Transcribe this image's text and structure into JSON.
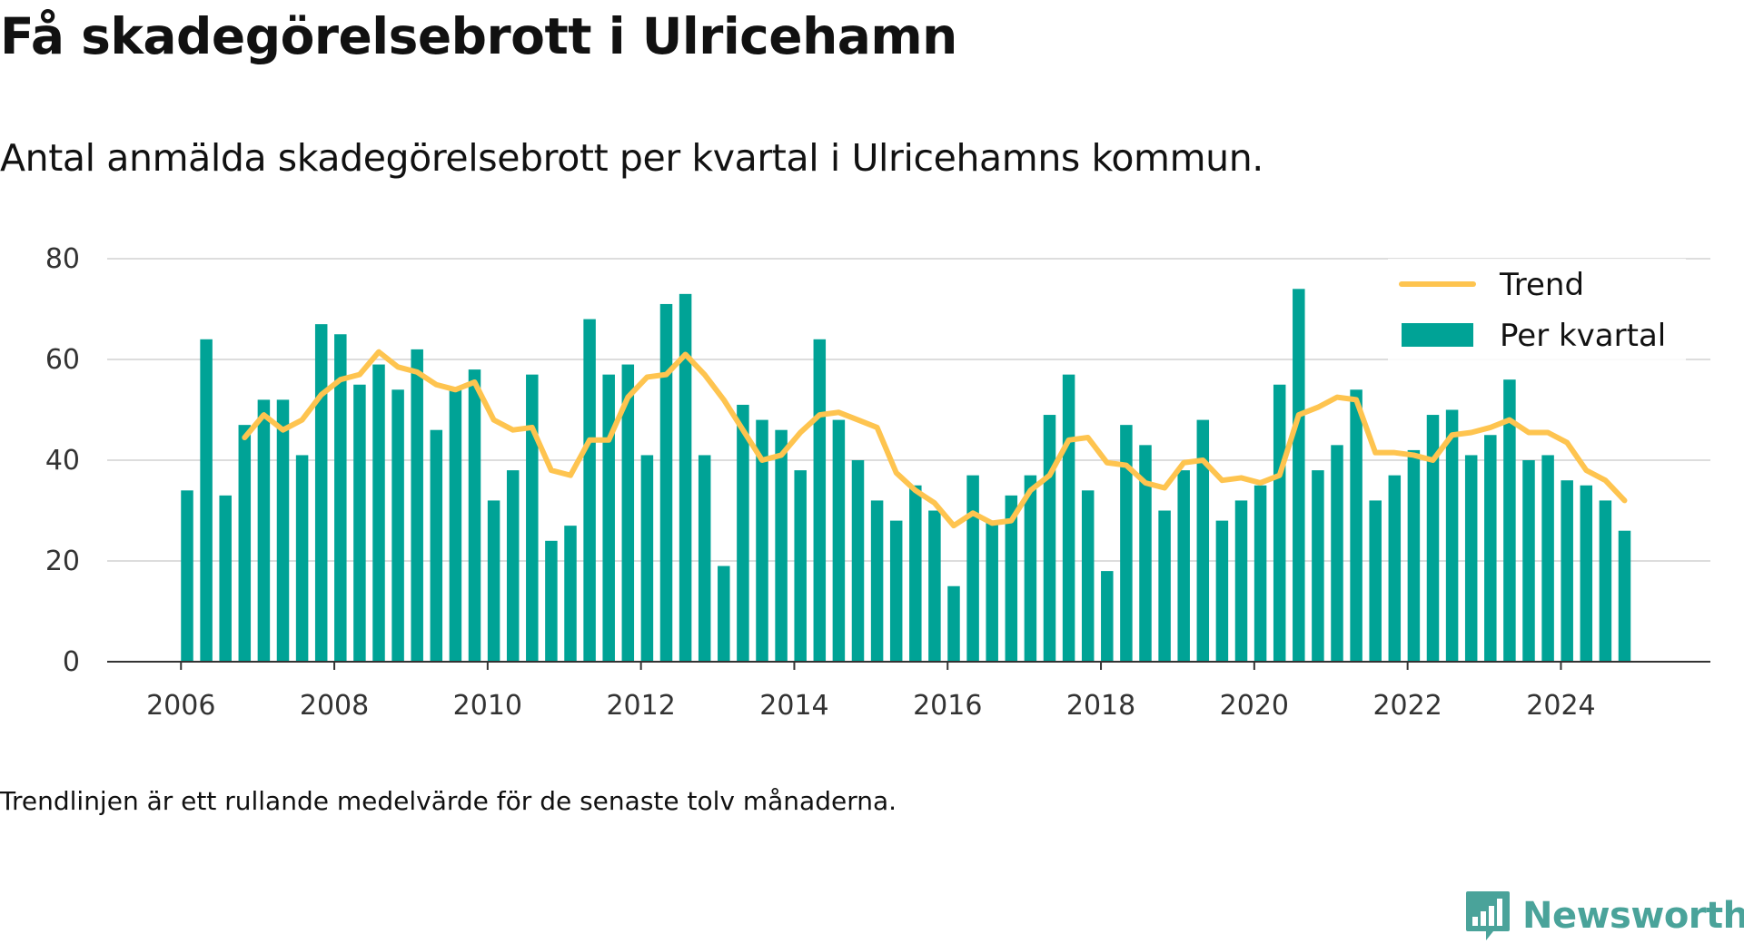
{
  "header": {
    "title": "Få skadegörelsebrott i Ulricehamn",
    "subtitle": "Antal anmälda skadegörelsebrott per kvartal i Ulricehamns kommun."
  },
  "footnote": "Trendlinjen är ett rullande medelvärde för de senaste tolv månaderna.",
  "brand": {
    "name": "Newsworthy",
    "icon": "newsworthy-logo-icon"
  },
  "colors": {
    "bar": "#00a396",
    "trend": "#fec44f",
    "grid": "#dddddd",
    "axis": "#333333",
    "brand": "#4aa39a"
  },
  "chart_data": {
    "type": "bar",
    "x_start": "2006 Q1",
    "x_tick_labels": [
      "2006",
      "2008",
      "2010",
      "2012",
      "2014",
      "2016",
      "2018",
      "2020",
      "2022",
      "2024"
    ],
    "y_tick_labels": [
      "0",
      "20",
      "40",
      "60",
      "80"
    ],
    "ylim": [
      0,
      80
    ],
    "grid": true,
    "legend_position": "top-right",
    "series": [
      {
        "name": "Per kvartal",
        "type": "bar",
        "values": [
          34,
          64,
          33,
          47,
          52,
          52,
          41,
          67,
          65,
          55,
          59,
          54,
          62,
          46,
          54,
          58,
          32,
          38,
          57,
          24,
          27,
          68,
          57,
          59,
          41,
          71,
          73,
          41,
          19,
          51,
          48,
          46,
          38,
          64,
          48,
          40,
          32,
          28,
          35,
          30,
          15,
          37,
          28,
          33,
          37,
          49,
          57,
          34,
          18,
          47,
          43,
          30,
          38,
          48,
          28,
          32,
          35,
          55,
          74,
          38,
          43,
          54,
          32,
          37,
          42,
          49,
          50,
          41,
          45,
          56,
          40,
          41,
          36,
          35,
          32,
          26
        ]
      },
      {
        "name": "Trend",
        "type": "line",
        "values": [
          null,
          null,
          null,
          44.5,
          49,
          46,
          48,
          53,
          56,
          57,
          61.5,
          58.5,
          57.5,
          55,
          54,
          55.5,
          48,
          46,
          46.5,
          38,
          37,
          44,
          44,
          52.5,
          56.5,
          57,
          61,
          57,
          52,
          46,
          40,
          41,
          45.5,
          49,
          49.5,
          48,
          46.5,
          37.5,
          34,
          31.5,
          27,
          29.5,
          27.5,
          28,
          34,
          37,
          44,
          44.5,
          39.5,
          39,
          35.5,
          34.5,
          39.5,
          40,
          36,
          36.5,
          35.5,
          37,
          49,
          50.5,
          52.5,
          52,
          41.5,
          41.5,
          41,
          40,
          45,
          45.5,
          46.5,
          48,
          45.5,
          45.5,
          43.5,
          38,
          36,
          32
        ]
      }
    ]
  }
}
